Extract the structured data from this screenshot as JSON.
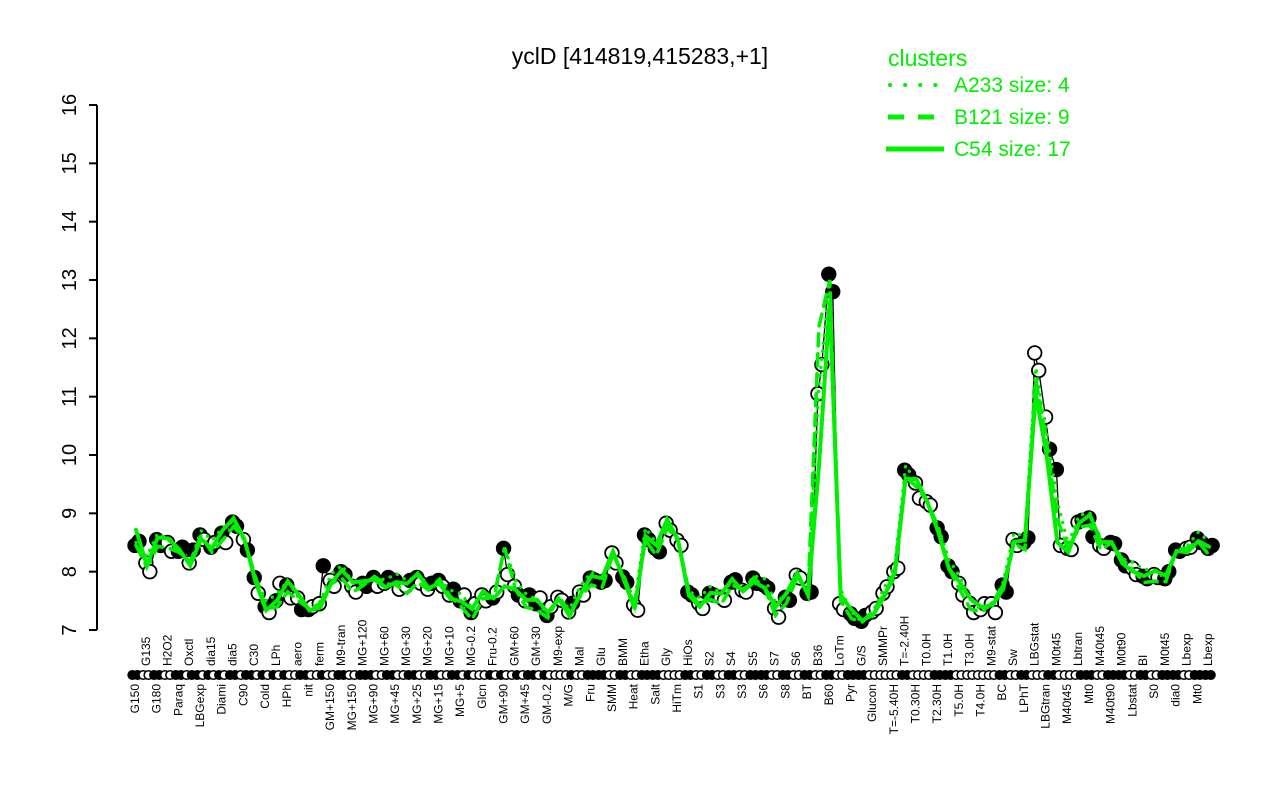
{
  "title": "yclD [414819,415283,+1]",
  "legend": {
    "header": "clusters",
    "entries": [
      {
        "name": "A233",
        "size": 4,
        "label": "A233 size: 4",
        "style": "dotted"
      },
      {
        "name": "B121",
        "size": 9,
        "label": "B121 size: 9",
        "style": "dashed"
      },
      {
        "name": "C54",
        "size": 17,
        "label": "C54 size: 17",
        "style": "solid"
      }
    ]
  },
  "colors": {
    "cluster_green": "#00ee00",
    "profile_black": "#000000",
    "background": "#ffffff"
  },
  "chart_data": {
    "type": "line",
    "title": "yclD [414819,415283,+1]",
    "ylabel": "",
    "xlabel": "",
    "ylim": [
      7,
      16
    ],
    "yticks": [
      7,
      8,
      9,
      10,
      11,
      12,
      13,
      14,
      15,
      16
    ],
    "grid": false,
    "legend_position": "top-right",
    "marker_legend": {
      "f": "filled circle",
      "o": "open circle"
    },
    "conditions": [
      [
        "G150",
        "b",
        8.45,
        "f",
        8.52,
        "f"
      ],
      [
        "G135",
        "t",
        8.15,
        "o",
        8.0,
        "o"
      ],
      [
        "G180",
        "b",
        8.55,
        "f",
        8.45,
        "f"
      ],
      [
        "H2O2",
        "t",
        8.5,
        "o",
        8.35,
        "o"
      ],
      [
        "Paraq",
        "b",
        8.35,
        "f",
        8.42,
        "f"
      ],
      [
        "Oxctl",
        "t",
        8.15,
        "o",
        8.37,
        "f"
      ],
      [
        "LBGexp",
        "b",
        8.63,
        "f",
        8.55,
        "o"
      ],
      [
        "dia15",
        "t",
        8.42,
        "f",
        8.5,
        "o"
      ],
      [
        "Diami",
        "b",
        8.66,
        "f",
        8.5,
        "o"
      ],
      [
        "dia5",
        "t",
        8.85,
        "f",
        8.78,
        "f"
      ],
      [
        "C90",
        "b",
        8.55,
        "o",
        8.37,
        "f"
      ],
      [
        "C30",
        "t",
        7.9,
        "f",
        7.63,
        "o"
      ],
      [
        "Cold",
        "b",
        7.4,
        "f",
        7.3,
        "o"
      ],
      [
        "LPh",
        "t",
        7.5,
        "f",
        7.8,
        "o"
      ],
      [
        "HPh",
        "b",
        7.77,
        "f",
        7.55,
        "o"
      ],
      [
        "aero",
        "t",
        7.55,
        "o",
        7.35,
        "f"
      ],
      [
        "nit",
        "b",
        7.35,
        "f",
        7.4,
        "o"
      ],
      [
        "ferm",
        "t",
        7.45,
        "o",
        8.1,
        "f"
      ],
      [
        "GM+150",
        "b",
        7.85,
        "o",
        7.75,
        "o"
      ],
      [
        "M9-tran",
        "t",
        8.0,
        "f",
        7.95,
        "f"
      ],
      [
        "MG+150",
        "b",
        7.75,
        "o",
        7.65,
        "o"
      ],
      [
        "MG+120",
        "t",
        7.8,
        "f",
        7.75,
        "f"
      ],
      [
        "MG+90",
        "b",
        7.9,
        "f",
        7.75,
        "o"
      ],
      [
        "MG+60",
        "t",
        7.8,
        "o",
        7.9,
        "f"
      ],
      [
        "MG+45",
        "b",
        7.85,
        "f",
        7.7,
        "o"
      ],
      [
        "MG+30",
        "t",
        7.75,
        "o",
        7.85,
        "f"
      ],
      [
        "MG+25",
        "b",
        7.9,
        "f",
        7.8,
        "o"
      ],
      [
        "MG+20",
        "t",
        7.7,
        "o",
        7.8,
        "f"
      ],
      [
        "MG+15",
        "b",
        7.85,
        "f",
        7.75,
        "o"
      ],
      [
        "MG+10",
        "t",
        7.6,
        "o",
        7.7,
        "f"
      ],
      [
        "MG+5",
        "b",
        7.5,
        "f",
        7.6,
        "o"
      ],
      [
        "MG-0.2",
        "t",
        7.3,
        "f",
        7.45,
        "o"
      ],
      [
        "Glcn",
        "b",
        7.6,
        "o",
        7.5,
        "o"
      ],
      [
        "Fru-0.2",
        "t",
        7.55,
        "f",
        7.65,
        "o"
      ],
      [
        "GM+90",
        "b",
        8.4,
        "f",
        7.95,
        "o"
      ],
      [
        "GM+60",
        "t",
        7.75,
        "o",
        7.6,
        "f"
      ],
      [
        "GM+45",
        "b",
        7.5,
        "o",
        7.6,
        "f"
      ],
      [
        "GM+30",
        "t",
        7.45,
        "f",
        7.55,
        "o"
      ],
      [
        "GM-0.2",
        "b",
        7.25,
        "f",
        7.4,
        "o"
      ],
      [
        "M9-exp",
        "t",
        7.56,
        "o",
        7.51,
        "o"
      ],
      [
        "M/G",
        "b",
        7.31,
        "o",
        7.46,
        "f"
      ],
      [
        "Mal",
        "t",
        7.65,
        "o",
        7.6,
        "o"
      ],
      [
        "Fru",
        "b",
        7.89,
        "f",
        7.86,
        "f"
      ],
      [
        "Glu",
        "t",
        7.82,
        "f",
        7.85,
        "f"
      ],
      [
        "SMM",
        "b",
        8.32,
        "o",
        8.15,
        "o"
      ],
      [
        "BMM",
        "t",
        7.91,
        "f",
        7.82,
        "f"
      ],
      [
        "Heat",
        "b",
        7.43,
        "o",
        7.34,
        "o"
      ],
      [
        "Etha",
        "t",
        8.63,
        "f",
        8.55,
        "f"
      ],
      [
        "Salt",
        "b",
        8.4,
        "f",
        8.34,
        "f"
      ],
      [
        "Gly",
        "t",
        8.83,
        "o",
        8.71,
        "o"
      ],
      [
        "HiTm",
        "b",
        8.54,
        "o",
        8.45,
        "o"
      ],
      [
        "HiOs",
        "t",
        7.65,
        "f",
        7.6,
        "f"
      ],
      [
        "S1",
        "b",
        7.46,
        "o",
        7.37,
        "o"
      ],
      [
        "S2",
        "t",
        7.63,
        "f",
        7.6,
        "f"
      ],
      [
        "S3",
        "b",
        7.56,
        "o",
        7.51,
        "o"
      ],
      [
        "S4",
        "t",
        7.82,
        "f",
        7.86,
        "f"
      ],
      [
        "S3",
        "b",
        7.68,
        "o",
        7.65,
        "o"
      ],
      [
        "S5",
        "t",
        7.89,
        "f",
        7.8,
        "f"
      ],
      [
        "S6",
        "b",
        7.77,
        "f",
        7.72,
        "f"
      ],
      [
        "S7",
        "t",
        7.37,
        "o",
        7.22,
        "o"
      ],
      [
        "S8",
        "b",
        7.56,
        "f",
        7.51,
        "f"
      ],
      [
        "S6",
        "t",
        7.94,
        "o",
        7.89,
        "o"
      ],
      [
        "BT",
        "b",
        7.63,
        "f",
        7.65,
        "f"
      ],
      [
        "B36",
        "t",
        11.05,
        "o",
        11.55,
        "o"
      ],
      [
        "B60",
        "b",
        13.1,
        "f",
        12.8,
        "f"
      ],
      [
        "LoTm",
        "t",
        7.45,
        "o",
        7.35,
        "o"
      ],
      [
        "Pyr",
        "b",
        7.28,
        "f",
        7.2,
        "f"
      ],
      [
        "G/S",
        "t",
        7.15,
        "f",
        7.25,
        "f"
      ],
      [
        "Glucon",
        "b",
        7.31,
        "o",
        7.37,
        "o"
      ],
      [
        "SMMPr",
        "t",
        7.63,
        "o",
        7.74,
        "o"
      ],
      [
        "T=-5.40H",
        "b",
        8.0,
        "o",
        8.06,
        "o"
      ],
      [
        "T=-2.40H",
        "t",
        9.74,
        "f",
        9.66,
        "f"
      ],
      [
        "T0.30H",
        "b",
        9.52,
        "o",
        9.26,
        "o"
      ],
      [
        "T0.0H",
        "t",
        9.2,
        "o",
        9.14,
        "o"
      ],
      [
        "T2.30H",
        "b",
        8.75,
        "f",
        8.6,
        "f"
      ],
      [
        "T1.0H",
        "t",
        8.1,
        "f",
        8.0,
        "f"
      ],
      [
        "T5.0H",
        "b",
        7.8,
        "o",
        7.6,
        "o"
      ],
      [
        "T3.0H",
        "t",
        7.46,
        "o",
        7.3,
        "o"
      ],
      [
        "T4.0H",
        "b",
        7.35,
        "o",
        7.45,
        "o"
      ],
      [
        "M9-stat",
        "t",
        7.45,
        "o",
        7.3,
        "o"
      ],
      [
        "BC",
        "b",
        7.77,
        "f",
        7.65,
        "f"
      ],
      [
        "Sw",
        "t",
        8.55,
        "o",
        8.45,
        "o"
      ],
      [
        "LPhT",
        "b",
        8.5,
        "f",
        8.58,
        "f"
      ],
      [
        "LBGstat",
        "t",
        11.75,
        "o",
        11.45,
        "o"
      ],
      [
        "LBGtran",
        "b",
        10.65,
        "o",
        10.1,
        "f"
      ],
      [
        "M0t45",
        "t",
        9.75,
        "f",
        8.45,
        "o"
      ],
      [
        "M40t45",
        "b",
        8.4,
        "o",
        8.38,
        "o"
      ],
      [
        "Lbtran",
        "t",
        8.85,
        "o",
        8.88,
        "f"
      ],
      [
        "Mt0",
        "b",
        8.92,
        "f",
        8.6,
        "f"
      ],
      [
        "M40t45",
        "t",
        8.45,
        "o",
        8.4,
        "o"
      ],
      [
        "M40t90",
        "b",
        8.5,
        "f",
        8.48,
        "f"
      ],
      [
        "M0t90",
        "t",
        8.2,
        "f",
        8.1,
        "f"
      ],
      [
        "Lbstat",
        "b",
        8.06,
        "o",
        7.95,
        "o"
      ],
      [
        "BI",
        "t",
        7.92,
        "f",
        7.88,
        "f"
      ],
      [
        "S0",
        "b",
        7.95,
        "o",
        7.9,
        "o"
      ],
      [
        "M0t45",
        "t",
        7.88,
        "f",
        8.0,
        "f"
      ],
      [
        "dia0",
        "b",
        8.37,
        "f",
        8.35,
        "f"
      ],
      [
        "Lbexp",
        "t",
        8.4,
        "o",
        8.42,
        "o"
      ],
      [
        "Mt0",
        "b",
        8.57,
        "f",
        8.5,
        "f"
      ],
      [
        "Lbexp",
        "t",
        8.4,
        "f",
        8.45,
        "f"
      ]
    ],
    "series": [
      {
        "name": "yclD profile",
        "color": "#000000",
        "note": "black line through all replicate points above"
      }
    ],
    "clusters": [
      {
        "name": "A233",
        "size": 4,
        "style": "dotted",
        "base_offset": 0.05,
        "overrides": {
          "63": 11.2,
          "64": 12.9,
          "65": 7.7,
          "83": 11.5,
          "84": 10.4,
          "85": 9.2
        }
      },
      {
        "name": "B121",
        "size": 9,
        "style": "dashed",
        "base_offset": -0.05,
        "overrides": {
          "63": 12.2,
          "64": 13.0,
          "65": 7.5,
          "83": 11.3,
          "84": 10.2,
          "85": 8.9
        }
      },
      {
        "name": "C54",
        "size": 17,
        "style": "solid",
        "base_offset": 0.0,
        "overrides": {
          "0": 8.72,
          "34": 7.75,
          "63": 9.8,
          "64": 12.6,
          "65": 7.6,
          "71": 9.6,
          "83": 11.05,
          "84": 10.0,
          "85": 8.5
        }
      }
    ]
  }
}
